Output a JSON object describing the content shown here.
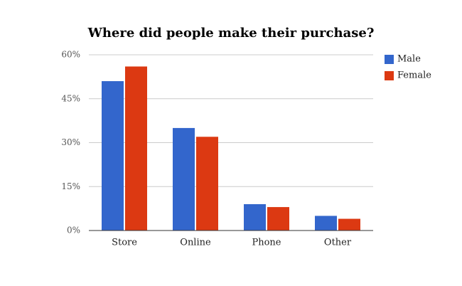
{
  "chart_data": {
    "type": "bar",
    "title": "Where did people make their purchase?",
    "categories": [
      "Store",
      "Online",
      "Phone",
      "Other"
    ],
    "series": [
      {
        "name": "Male",
        "color": "#3366cc",
        "values": [
          51,
          35,
          9,
          5
        ]
      },
      {
        "name": "Female",
        "color": "#dc3912",
        "values": [
          56,
          32,
          8,
          4
        ]
      }
    ],
    "ylim": [
      0,
      60
    ],
    "yticks": [
      {
        "value": 0,
        "label": "0%"
      },
      {
        "value": 15,
        "label": "15%"
      },
      {
        "value": 30,
        "label": "30%"
      },
      {
        "value": 45,
        "label": "45%"
      },
      {
        "value": 60,
        "label": "60%"
      }
    ],
    "grid": true,
    "legend": "right"
  }
}
